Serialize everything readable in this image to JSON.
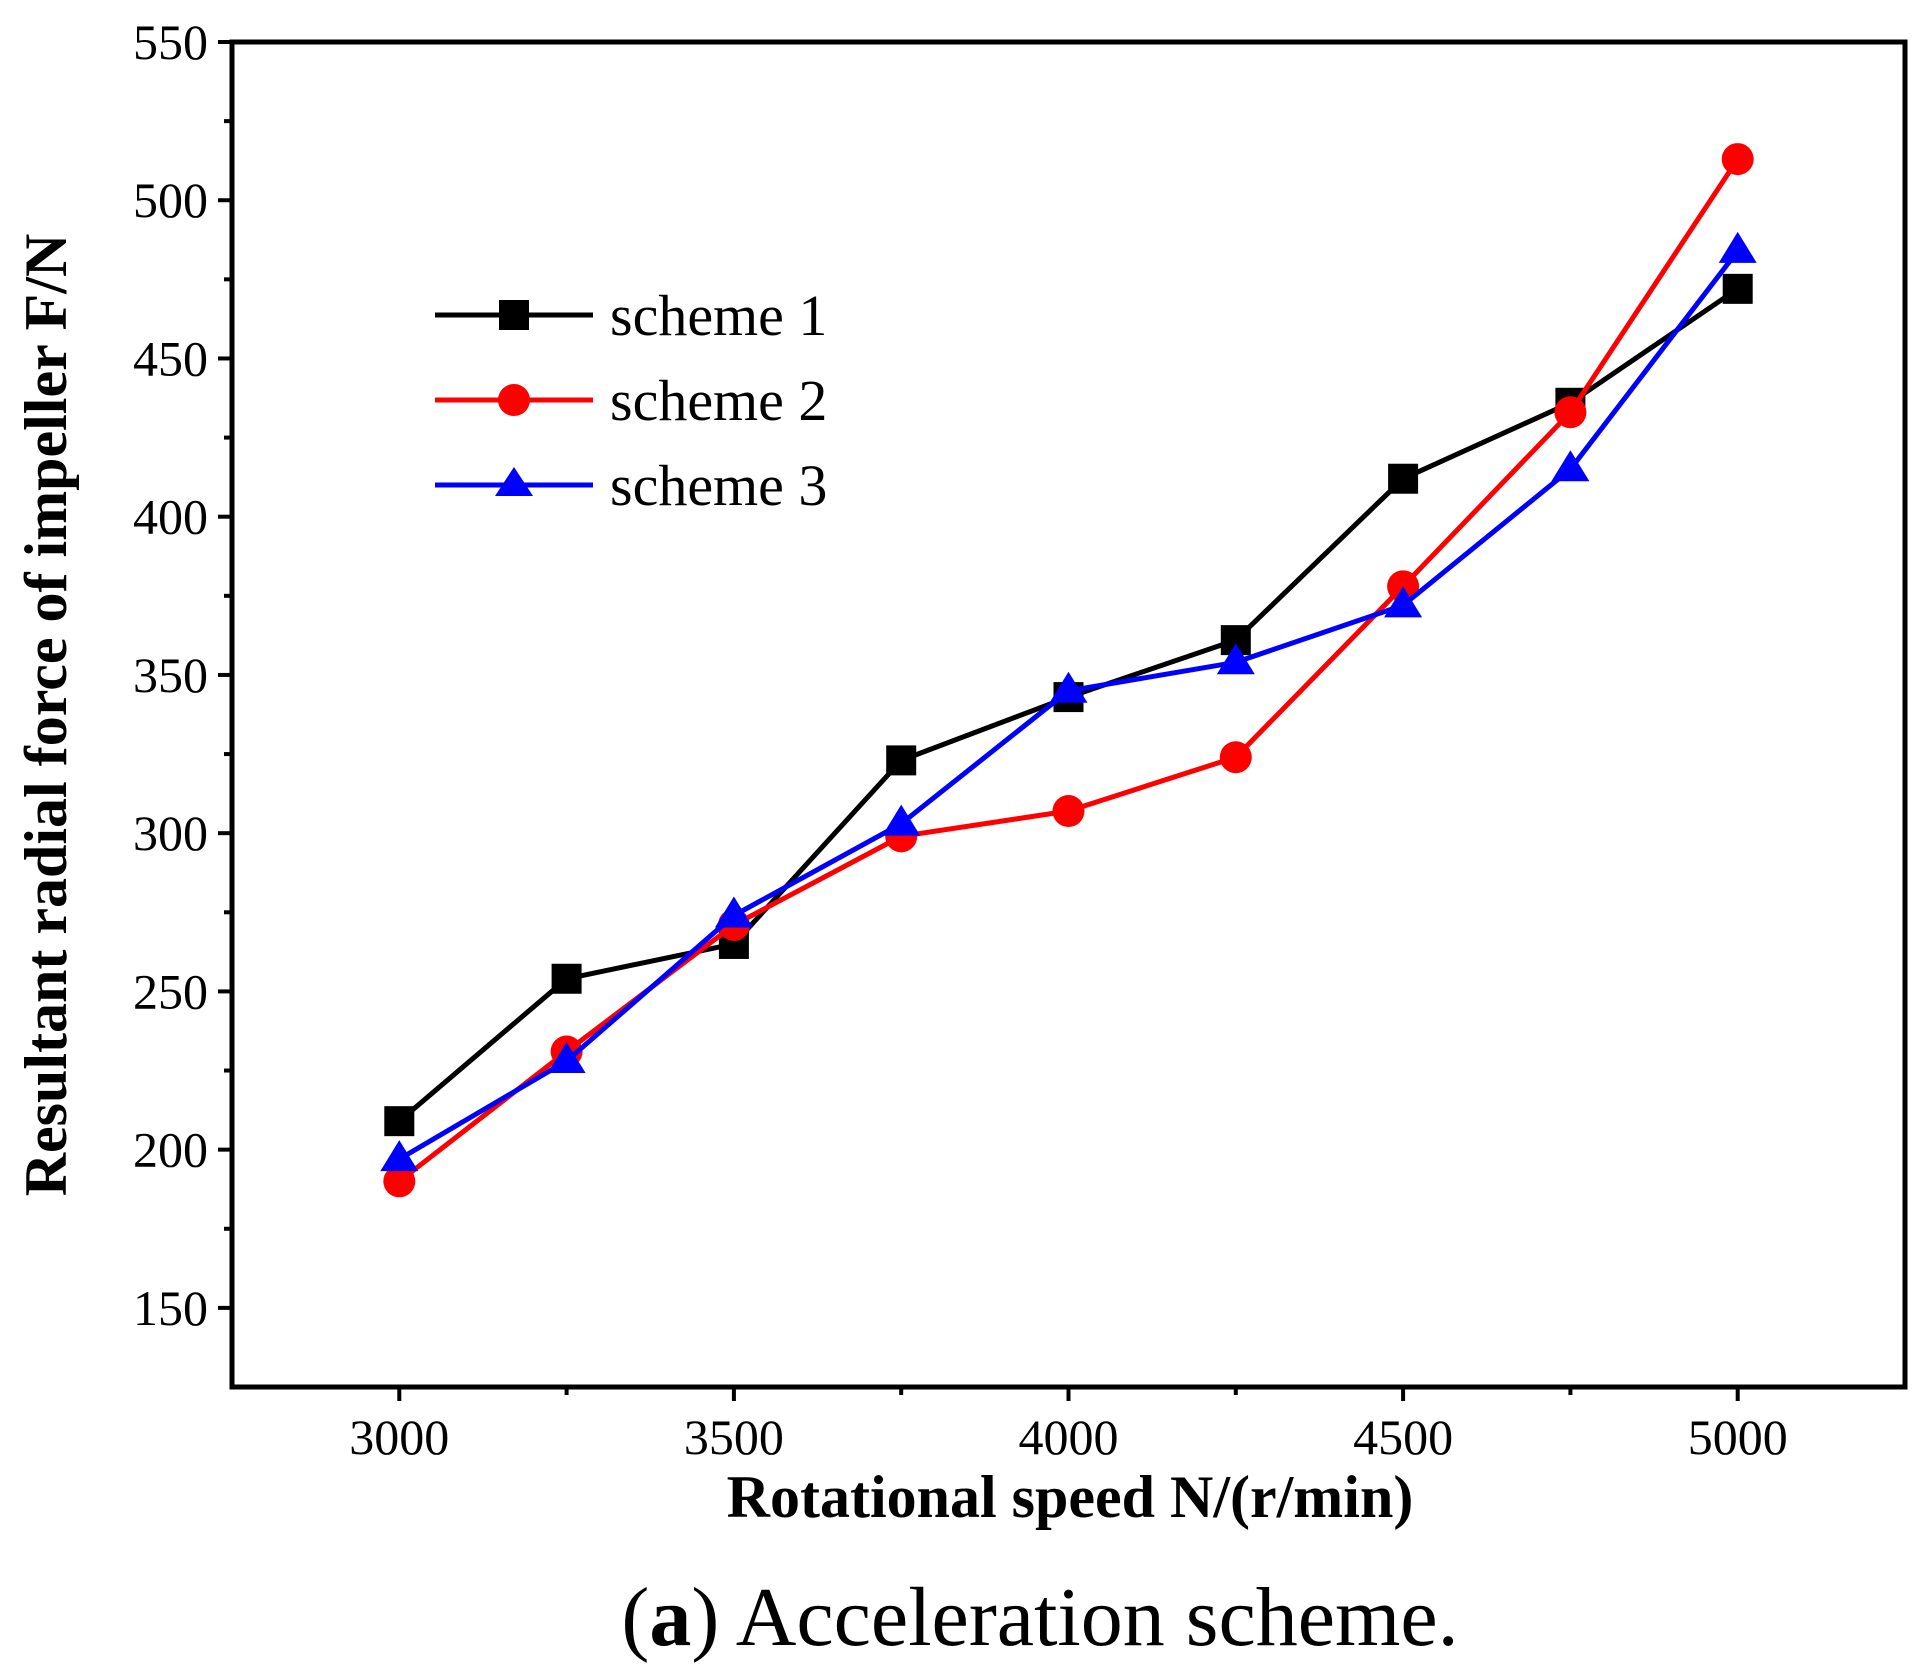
{
  "chart_data": {
    "type": "line",
    "title": "",
    "xlabel": "Rotational speed N/(r/min)",
    "ylabel": "Resultant radial force of impeller F/N",
    "caption_tag": "a",
    "caption_text": "Acceleration scheme.",
    "xlim": [
      2750,
      5250
    ],
    "ylim": [
      125,
      550
    ],
    "x_ticks": [
      3000,
      3500,
      4000,
      4500,
      5000
    ],
    "x_tick_labels": [
      "3000",
      "3500",
      "4000",
      "4500",
      "5000"
    ],
    "x_minor_ticks": [
      3250,
      3750,
      4250,
      4750
    ],
    "y_ticks": [
      150,
      200,
      250,
      300,
      350,
      400,
      450,
      500,
      550
    ],
    "y_tick_labels": [
      "150",
      "200",
      "250",
      "300",
      "350",
      "400",
      "450",
      "500",
      "550"
    ],
    "y_minor_ticks": [
      175,
      225,
      275,
      325,
      375,
      425,
      475,
      525
    ],
    "grid": false,
    "legend_position": "upper-left",
    "x": [
      3000,
      3250,
      3500,
      3750,
      4000,
      4250,
      4500,
      4750,
      5000
    ],
    "series": [
      {
        "name": "scheme 1",
        "color": "#000000",
        "marker": "square",
        "values": [
          209,
          254,
          265,
          323,
          343,
          361,
          412,
          436,
          472
        ]
      },
      {
        "name": "scheme 2",
        "color": "#ff0000",
        "marker": "circle",
        "values": [
          190,
          231,
          271,
          299,
          307,
          324,
          378,
          433,
          513
        ]
      },
      {
        "name": "scheme 3",
        "color": "#0000ff",
        "marker": "triangle",
        "values": [
          197,
          228,
          274,
          303,
          345,
          354,
          372,
          415,
          484
        ]
      }
    ]
  }
}
